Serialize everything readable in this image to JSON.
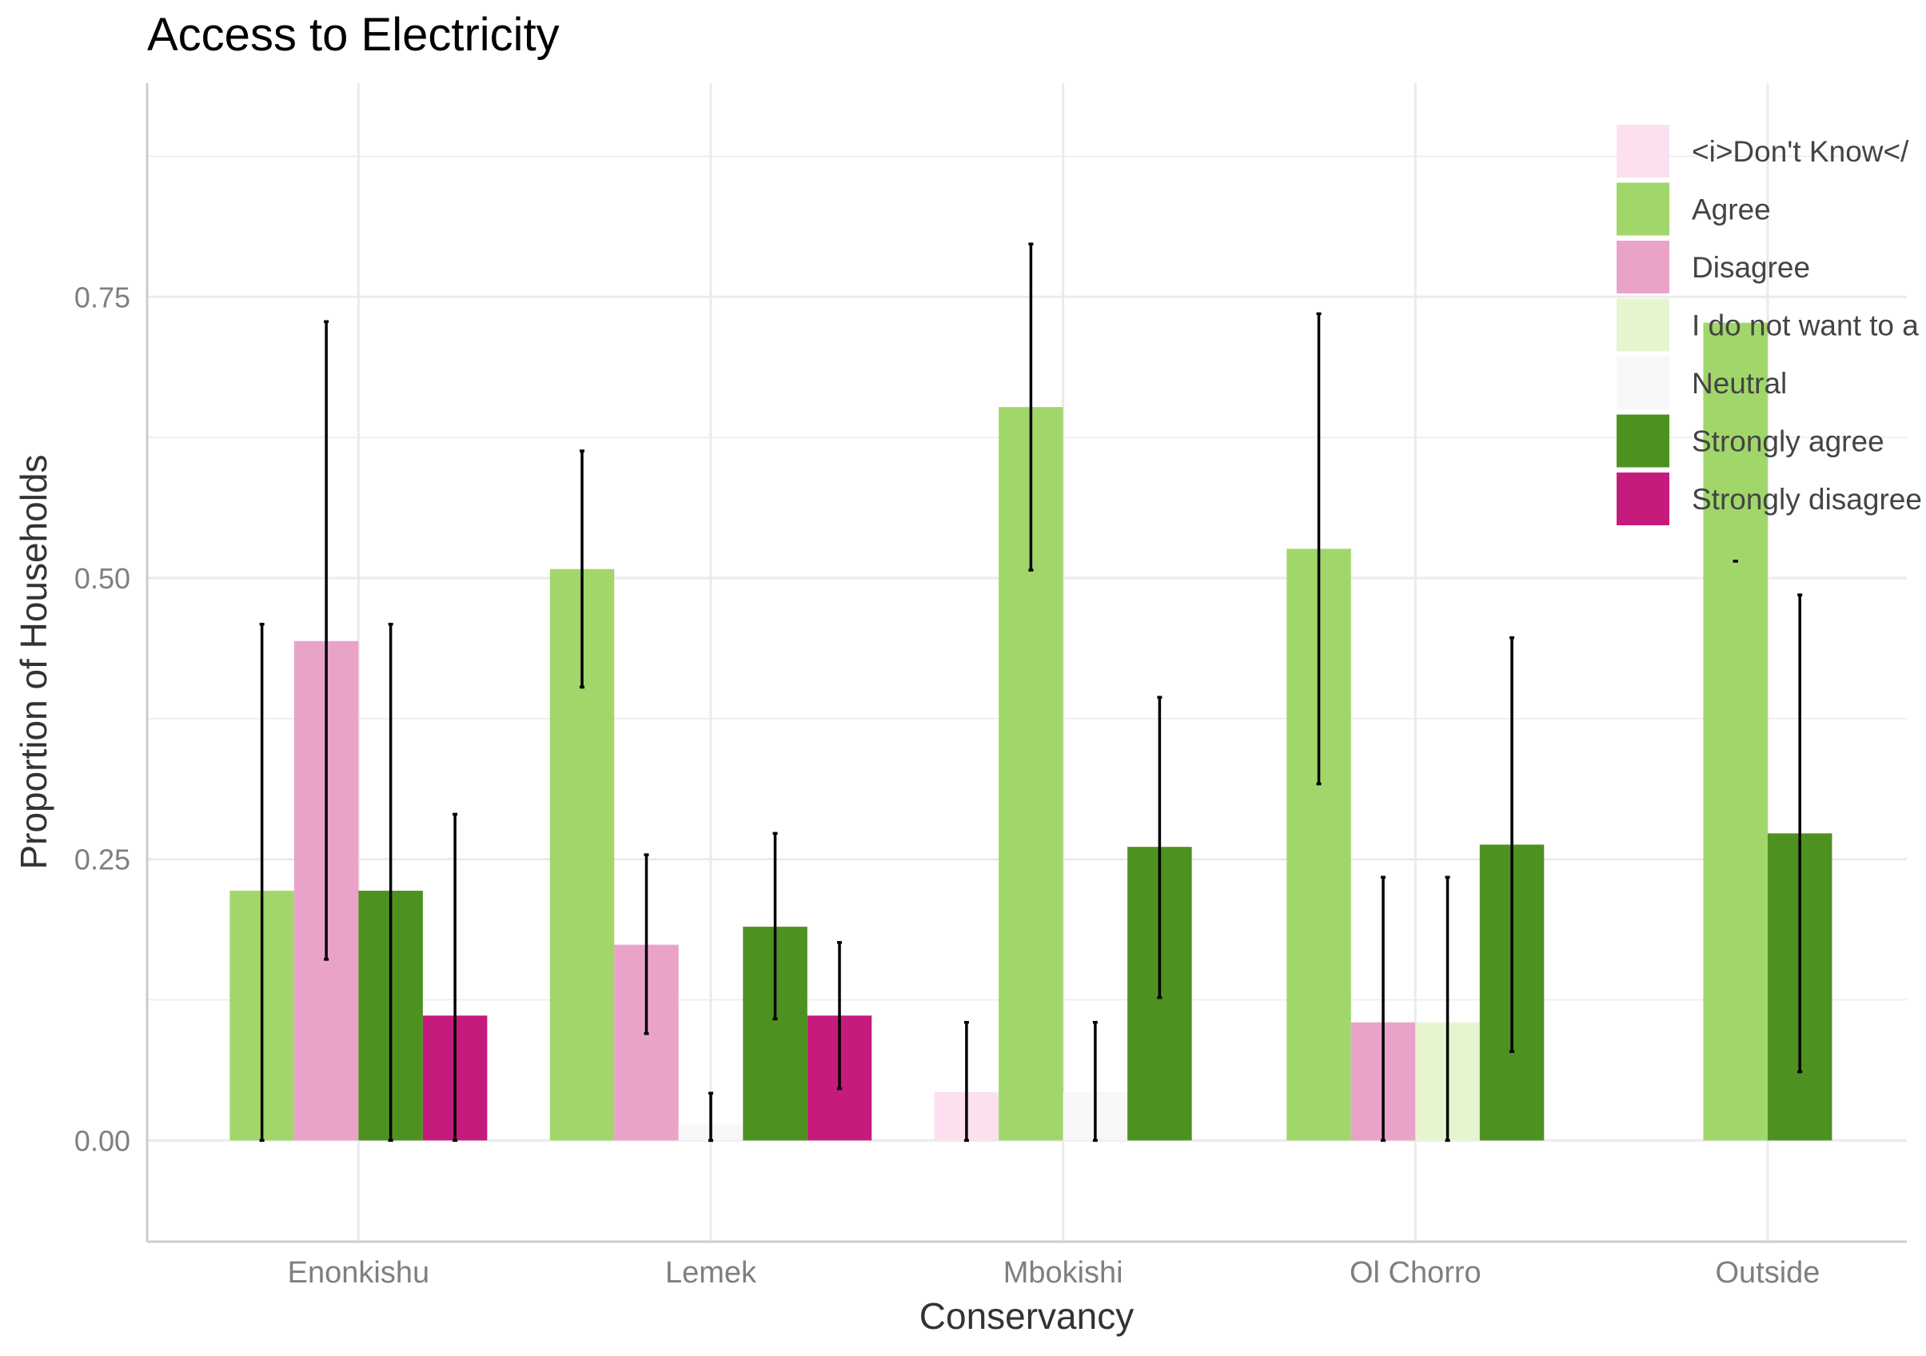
{
  "chart_data": {
    "type": "bar",
    "title": "Access to Electricity",
    "xlabel": "Conservancy",
    "ylabel": "Proportion of Households",
    "ylim": [
      -0.09,
      0.94
    ],
    "yticks": [
      0.0,
      0.25,
      0.5,
      0.75
    ],
    "ytick_labels": [
      "0.00",
      "0.25",
      "0.50",
      "0.75"
    ],
    "grid": true,
    "legend_position": "top-right",
    "categories": [
      "Enonkishu",
      "Lemek",
      "Mbokishi",
      "Ol Chorro",
      "Outside"
    ],
    "series": [
      {
        "name": "<i>Don't Know</i>",
        "color": "#fde0ef",
        "values": [
          null,
          null,
          0.043,
          null,
          null
        ],
        "lower": [
          null,
          null,
          0.0,
          null,
          null
        ],
        "upper": [
          null,
          null,
          0.105,
          null,
          null
        ]
      },
      {
        "name": "Agree",
        "color": "#a1d76a",
        "values": [
          0.222,
          0.508,
          0.652,
          0.526,
          0.727
        ],
        "lower": [
          0.0,
          0.403,
          0.507,
          0.317,
          0.515
        ],
        "upper": [
          0.459,
          0.613,
          0.797,
          0.735,
          0.515
        ]
      },
      {
        "name": "Disagree",
        "color": "#e9a3c9",
        "values": [
          0.444,
          0.174,
          null,
          0.105,
          null
        ],
        "lower": [
          0.161,
          0.095,
          null,
          0.0,
          null
        ],
        "upper": [
          0.728,
          0.254,
          null,
          0.234,
          null
        ]
      },
      {
        "name": "I do not want to answer",
        "color": "#e6f5d0",
        "values": [
          null,
          null,
          null,
          0.105,
          null
        ],
        "lower": [
          null,
          null,
          null,
          0.0,
          null
        ],
        "upper": [
          null,
          null,
          null,
          0.234,
          null
        ]
      },
      {
        "name": "Neutral",
        "color": "#f7f7f7",
        "values": [
          null,
          0.014,
          0.043,
          null,
          null
        ],
        "lower": [
          null,
          0.0,
          0.0,
          null,
          null
        ],
        "upper": [
          null,
          0.042,
          0.105,
          null,
          null
        ]
      },
      {
        "name": "Strongly agree",
        "color": "#4d9221",
        "values": [
          0.222,
          0.19,
          0.261,
          0.263,
          0.273
        ],
        "lower": [
          0.0,
          0.108,
          0.127,
          0.079,
          0.061
        ],
        "upper": [
          0.459,
          0.273,
          0.394,
          0.447,
          0.485
        ]
      },
      {
        "name": "Strongly disagree",
        "color": "#c51b7d",
        "values": [
          0.111,
          0.111,
          null,
          null,
          null
        ],
        "lower": [
          0.0,
          0.046,
          null,
          null,
          null
        ],
        "upper": [
          0.29,
          0.176,
          null,
          null,
          null
        ]
      }
    ],
    "legend_labels": [
      "<i>Don't Know</",
      "Agree",
      "Disagree",
      "I do not want to a",
      "Neutral",
      "Strongly agree",
      "Strongly disagree"
    ]
  }
}
